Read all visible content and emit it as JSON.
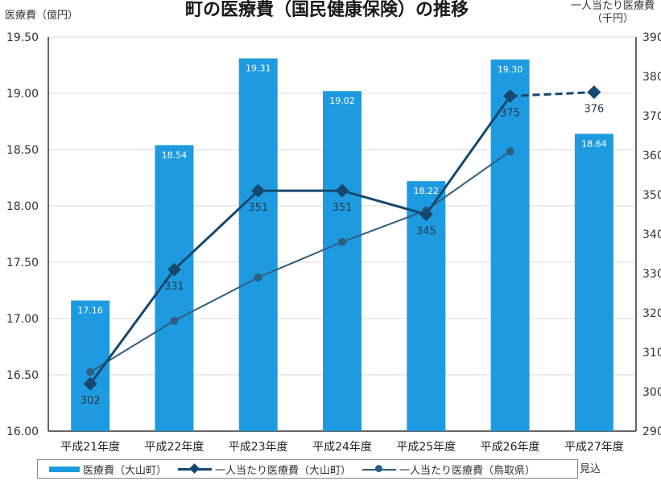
{
  "title": "町の医療費（国民健康保険）の推移",
  "y_left_label": "医療費（億円）",
  "y_right_label_line1": "一人当たり医療費",
  "y_right_label_line2": "（千円）",
  "note": "見込",
  "legend": [
    {
      "label": "医療費（大山町）"
    },
    {
      "label": "一人当たり医療費（大山町）"
    },
    {
      "label": "一人当たり医療費（鳥取県）"
    }
  ],
  "colors": {
    "bar": "#1E9BE0",
    "line_town": "#15486F",
    "line_pref": "#2E5E80",
    "grid": "#d9d9d9"
  },
  "chart_data": {
    "type": "bar",
    "categories": [
      "平成21年度",
      "平成22年度",
      "平成23年度",
      "平成24年度",
      "平成25年度",
      "平成26年度",
      "平成27年度"
    ],
    "series": [
      {
        "name": "医療費（大山町）",
        "type": "bar",
        "axis": "left",
        "values": [
          17.16,
          18.54,
          19.31,
          19.02,
          18.22,
          19.3,
          18.64
        ],
        "labels": [
          "17.16",
          "18.54",
          "19.31",
          "19.02",
          "18.22",
          "19.30",
          "18.64"
        ]
      },
      {
        "name": "一人当たり医療費（大山町）",
        "type": "line",
        "axis": "right",
        "values": [
          302,
          331,
          351,
          351,
          345,
          375,
          376
        ],
        "labels": [
          "302",
          "331",
          "351",
          "351",
          "345",
          "375",
          "376"
        ],
        "dashed_last_segment": true
      },
      {
        "name": "一人当たり医療費（鳥取県）",
        "type": "line",
        "axis": "right",
        "values": [
          305,
          318,
          329,
          338,
          346,
          361,
          null
        ]
      }
    ],
    "y_left": {
      "min": 16.0,
      "max": 19.5,
      "ticks": [
        "16.00",
        "16.50",
        "17.00",
        "17.50",
        "18.00",
        "18.50",
        "19.00",
        "19.50"
      ]
    },
    "y_right": {
      "min": 290,
      "max": 390,
      "ticks": [
        "290",
        "300",
        "310",
        "320",
        "330",
        "340",
        "350",
        "360",
        "370",
        "380",
        "390"
      ]
    },
    "grid": "horizontal",
    "legend_position": "bottom"
  }
}
